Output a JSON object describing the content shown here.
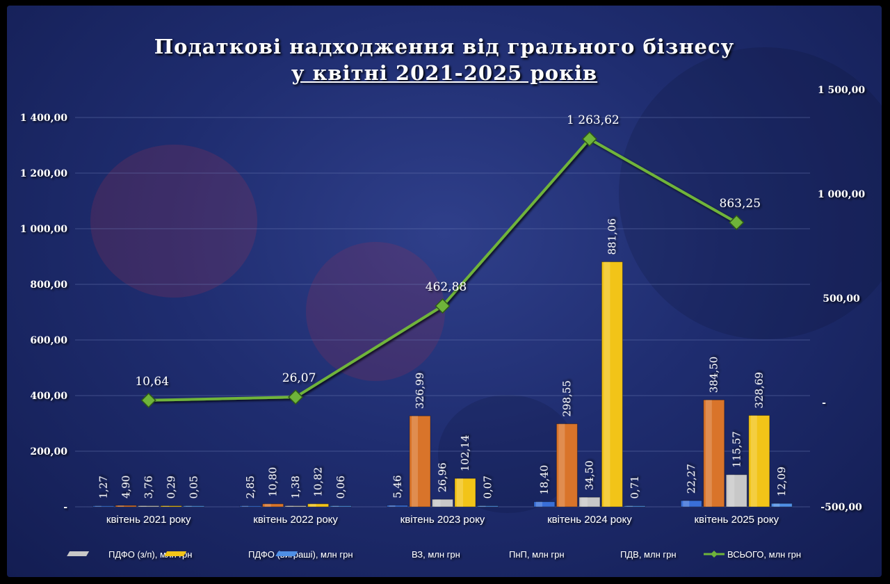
{
  "title_line1": "Податкові надходження від грального бізнесу",
  "title_line2": "у квітні 2021-2025 років",
  "chart_data": {
    "type": "bar",
    "categories": [
      "квітень 2021 року",
      "квітень 2022 року",
      "квітень 2023 року",
      "квітень 2024 року",
      "квітень 2025 року"
    ],
    "series": [
      {
        "name": "ПДФО (з/п), млн грн",
        "values": [
          1.27,
          2.85,
          5.46,
          18.4,
          22.27
        ],
        "labels": [
          "1,27",
          "2,85",
          "5,46",
          "18,40",
          "22,27"
        ],
        "color": "#3a6fd8"
      },
      {
        "name": "ПДФО (виграші), млн грн",
        "values": [
          4.9,
          10.8,
          326.99,
          298.55,
          384.5
        ],
        "labels": [
          "4,90",
          "10,80",
          "326,99",
          "298,55",
          "384,50"
        ],
        "color": "#d9742a"
      },
      {
        "name": "ВЗ, млн грн",
        "values": [
          3.76,
          1.38,
          26.96,
          34.5,
          115.57
        ],
        "labels": [
          "3,76",
          "1,38",
          "26,96",
          "34,50",
          "115,57"
        ],
        "color": "#c8c8c8"
      },
      {
        "name": "ПнП, млн грн",
        "values": [
          0.29,
          10.82,
          102.14,
          881.06,
          328.69
        ],
        "labels": [
          "0,29",
          "10,82",
          "102,14",
          "881,06",
          "328,69"
        ],
        "color": "#f2c418"
      },
      {
        "name": "ПДВ, млн грн",
        "values": [
          0.05,
          0.06,
          0.07,
          0.71,
          12.09
        ],
        "labels": [
          "0,05",
          "0,06",
          "0,07",
          "0,71",
          "12,09"
        ],
        "color": "#4f8fe6"
      }
    ],
    "line_series": {
      "name": "ВСЬОГО, млн грн",
      "values": [
        10.64,
        26.07,
        462.88,
        1263.62,
        863.25
      ],
      "labels": [
        "10,64",
        "26,07",
        "462,88",
        "1 263,62",
        "863,25"
      ],
      "color": "#6fb43a",
      "axis": "secondary"
    },
    "ylim": [
      0,
      1500
    ],
    "yticks": [
      0,
      200,
      400,
      600,
      800,
      1000,
      1200,
      1400
    ],
    "ytick_labels": [
      "-",
      "200,00",
      "400,00",
      "600,00",
      "800,00",
      "1 000,00",
      "1 200,00",
      "1 400,00"
    ],
    "y2lim": [
      -500,
      1500
    ],
    "y2ticks": [
      -500,
      0,
      500,
      1000,
      1500
    ],
    "y2tick_labels": [
      "-500,00",
      "-",
      "500,00",
      "1 000,00",
      "1 500,00"
    ],
    "grid": true,
    "legend_position": "bottom"
  }
}
